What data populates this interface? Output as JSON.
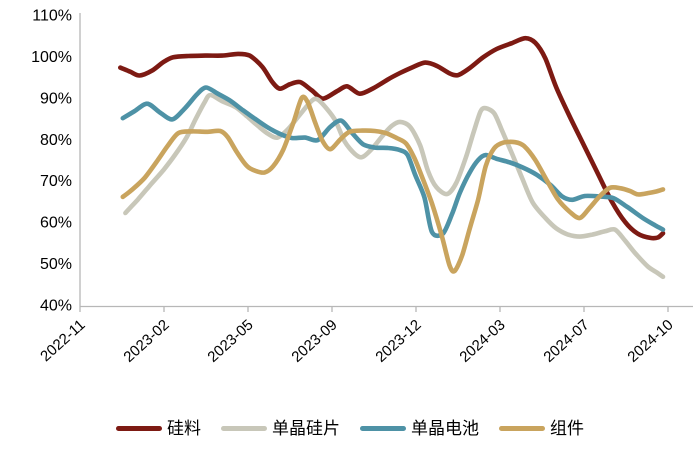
{
  "chart_data": {
    "type": "line",
    "title": "",
    "xlabel": "",
    "ylabel": "",
    "y_unit": "%",
    "ylim": [
      40,
      110
    ],
    "y_ticks": [
      110,
      100,
      90,
      80,
      70,
      60,
      50,
      40
    ],
    "x_tick_labels": [
      "2022-11",
      "2023-02",
      "2023-05",
      "2023-09",
      "2023-12",
      "2024-03",
      "2024-07",
      "2024-10"
    ],
    "grid": false,
    "legend_position": "bottom",
    "axis_color": "#b7b7b7",
    "text_color": "#000000",
    "series": [
      {
        "key": "silicon",
        "name": "硅料",
        "color": "#7d1a13",
        "points": [
          [
            0.48,
            97.3
          ],
          [
            0.6,
            96.3
          ],
          [
            0.71,
            95.4
          ],
          [
            0.86,
            96.6
          ],
          [
            0.99,
            98.6
          ],
          [
            1.11,
            99.8
          ],
          [
            1.29,
            100.1
          ],
          [
            1.49,
            100.2
          ],
          [
            1.69,
            100.2
          ],
          [
            1.88,
            100.6
          ],
          [
            2.02,
            100.2
          ],
          [
            2.17,
            97.5
          ],
          [
            2.29,
            93.8
          ],
          [
            2.38,
            92.2
          ],
          [
            2.5,
            93.3
          ],
          [
            2.62,
            93.8
          ],
          [
            2.76,
            91.8
          ],
          [
            2.89,
            89.8
          ],
          [
            3.06,
            91.6
          ],
          [
            3.18,
            92.8
          ],
          [
            3.33,
            91.0
          ],
          [
            3.49,
            92.3
          ],
          [
            3.67,
            94.5
          ],
          [
            3.81,
            96.0
          ],
          [
            3.96,
            97.4
          ],
          [
            4.11,
            98.5
          ],
          [
            4.25,
            97.7
          ],
          [
            4.4,
            95.9
          ],
          [
            4.5,
            95.5
          ],
          [
            4.64,
            97.2
          ],
          [
            4.8,
            99.8
          ],
          [
            4.96,
            101.8
          ],
          [
            5.14,
            103.2
          ],
          [
            5.3,
            104.4
          ],
          [
            5.42,
            103.3
          ],
          [
            5.54,
            99.5
          ],
          [
            5.67,
            92.5
          ],
          [
            5.83,
            85.5
          ],
          [
            6.0,
            78.5
          ],
          [
            6.17,
            71.5
          ],
          [
            6.33,
            65.0
          ],
          [
            6.49,
            60.0
          ],
          [
            6.64,
            57.2
          ],
          [
            6.79,
            56.2
          ],
          [
            6.88,
            56.3
          ],
          [
            6.94,
            57.3
          ]
        ]
      },
      {
        "key": "mono-wafer",
        "name": "单晶硅片",
        "color": "#c8c7b9",
        "points": [
          [
            0.54,
            62.2
          ],
          [
            0.69,
            65.5
          ],
          [
            0.83,
            68.8
          ],
          [
            0.99,
            72.5
          ],
          [
            1.13,
            76.2
          ],
          [
            1.27,
            80.5
          ],
          [
            1.38,
            85.0
          ],
          [
            1.48,
            88.8
          ],
          [
            1.55,
            90.7
          ],
          [
            1.69,
            89.2
          ],
          [
            1.85,
            87.8
          ],
          [
            1.99,
            85.5
          ],
          [
            2.12,
            83.2
          ],
          [
            2.24,
            81.3
          ],
          [
            2.35,
            80.4
          ],
          [
            2.48,
            82.5
          ],
          [
            2.62,
            86.0
          ],
          [
            2.76,
            89.3
          ],
          [
            2.83,
            89.6
          ],
          [
            2.94,
            87.3
          ],
          [
            3.04,
            84.5
          ],
          [
            3.15,
            79.5
          ],
          [
            3.27,
            76.5
          ],
          [
            3.36,
            75.7
          ],
          [
            3.48,
            77.8
          ],
          [
            3.6,
            80.8
          ],
          [
            3.71,
            83.2
          ],
          [
            3.81,
            84.2
          ],
          [
            3.93,
            83.0
          ],
          [
            4.05,
            78.5
          ],
          [
            4.14,
            72.5
          ],
          [
            4.24,
            68.5
          ],
          [
            4.37,
            66.8
          ],
          [
            4.48,
            69.5
          ],
          [
            4.6,
            76.0
          ],
          [
            4.69,
            82.0
          ],
          [
            4.77,
            86.8
          ],
          [
            4.83,
            87.5
          ],
          [
            4.93,
            86.3
          ],
          [
            5.02,
            82.3
          ],
          [
            5.15,
            76.2
          ],
          [
            5.27,
            70.3
          ],
          [
            5.39,
            64.7
          ],
          [
            5.54,
            61.0
          ],
          [
            5.67,
            58.5
          ],
          [
            5.81,
            57.0
          ],
          [
            5.95,
            56.5
          ],
          [
            6.1,
            57.0
          ],
          [
            6.25,
            57.8
          ],
          [
            6.37,
            58.2
          ],
          [
            6.49,
            55.5
          ],
          [
            6.61,
            52.5
          ],
          [
            6.76,
            49.3
          ],
          [
            6.87,
            47.8
          ],
          [
            6.94,
            46.8
          ]
        ]
      },
      {
        "key": "mono-cell",
        "name": "单晶电池",
        "color": "#4e92a6",
        "points": [
          [
            0.51,
            85.1
          ],
          [
            0.65,
            86.8
          ],
          [
            0.8,
            88.6
          ],
          [
            0.95,
            86.5
          ],
          [
            1.1,
            84.8
          ],
          [
            1.25,
            87.5
          ],
          [
            1.39,
            90.8
          ],
          [
            1.5,
            92.5
          ],
          [
            1.64,
            91.0
          ],
          [
            1.79,
            89.3
          ],
          [
            1.94,
            87.0
          ],
          [
            2.08,
            85.0
          ],
          [
            2.24,
            82.8
          ],
          [
            2.38,
            81.3
          ],
          [
            2.52,
            80.3
          ],
          [
            2.68,
            80.4
          ],
          [
            2.83,
            79.8
          ],
          [
            2.98,
            83.0
          ],
          [
            3.11,
            84.5
          ],
          [
            3.24,
            81.5
          ],
          [
            3.37,
            78.8
          ],
          [
            3.51,
            78.0
          ],
          [
            3.67,
            77.9
          ],
          [
            3.81,
            77.4
          ],
          [
            3.9,
            76.2
          ],
          [
            3.99,
            71.4
          ],
          [
            4.1,
            66.0
          ],
          [
            4.19,
            57.6
          ],
          [
            4.32,
            57.2
          ],
          [
            4.43,
            62.0
          ],
          [
            4.52,
            67.0
          ],
          [
            4.64,
            72.0
          ],
          [
            4.74,
            75.0
          ],
          [
            4.83,
            76.2
          ],
          [
            4.96,
            75.3
          ],
          [
            5.12,
            74.4
          ],
          [
            5.27,
            73.2
          ],
          [
            5.44,
            71.4
          ],
          [
            5.6,
            69.0
          ],
          [
            5.74,
            66.2
          ],
          [
            5.86,
            65.4
          ],
          [
            6.01,
            66.3
          ],
          [
            6.19,
            66.2
          ],
          [
            6.35,
            65.8
          ],
          [
            6.52,
            63.6
          ],
          [
            6.7,
            61.0
          ],
          [
            6.85,
            59.2
          ],
          [
            6.94,
            58.2
          ]
        ]
      },
      {
        "key": "module",
        "name": "组件",
        "color": "#c9a45e",
        "points": [
          [
            0.51,
            66.1
          ],
          [
            0.63,
            68.0
          ],
          [
            0.77,
            70.7
          ],
          [
            0.92,
            74.8
          ],
          [
            1.04,
            78.3
          ],
          [
            1.17,
            81.5
          ],
          [
            1.33,
            81.9
          ],
          [
            1.51,
            81.8
          ],
          [
            1.67,
            82.0
          ],
          [
            1.76,
            80.5
          ],
          [
            1.87,
            76.8
          ],
          [
            1.99,
            73.5
          ],
          [
            2.1,
            72.3
          ],
          [
            2.2,
            72.0
          ],
          [
            2.3,
            73.5
          ],
          [
            2.42,
            77.5
          ],
          [
            2.54,
            84.0
          ],
          [
            2.64,
            90.0
          ],
          [
            2.71,
            89.0
          ],
          [
            2.8,
            84.0
          ],
          [
            2.89,
            79.5
          ],
          [
            2.98,
            77.6
          ],
          [
            3.1,
            80.0
          ],
          [
            3.21,
            81.8
          ],
          [
            3.36,
            82.1
          ],
          [
            3.51,
            82.0
          ],
          [
            3.64,
            81.5
          ],
          [
            3.77,
            80.3
          ],
          [
            3.88,
            79.0
          ],
          [
            3.98,
            75.5
          ],
          [
            4.08,
            70.5
          ],
          [
            4.19,
            64.5
          ],
          [
            4.31,
            56.5
          ],
          [
            4.4,
            49.5
          ],
          [
            4.46,
            48.2
          ],
          [
            4.55,
            52.0
          ],
          [
            4.64,
            58.5
          ],
          [
            4.74,
            65.5
          ],
          [
            4.83,
            73.5
          ],
          [
            4.93,
            77.8
          ],
          [
            5.04,
            79.2
          ],
          [
            5.18,
            79.3
          ],
          [
            5.29,
            78.3
          ],
          [
            5.42,
            75.0
          ],
          [
            5.56,
            70.0
          ],
          [
            5.69,
            65.5
          ],
          [
            5.83,
            62.5
          ],
          [
            5.95,
            61.0
          ],
          [
            6.07,
            63.5
          ],
          [
            6.19,
            66.3
          ],
          [
            6.31,
            68.3
          ],
          [
            6.43,
            68.2
          ],
          [
            6.55,
            67.5
          ],
          [
            6.64,
            66.7
          ],
          [
            6.76,
            67.0
          ],
          [
            6.86,
            67.4
          ],
          [
            6.94,
            67.9
          ]
        ]
      }
    ]
  }
}
